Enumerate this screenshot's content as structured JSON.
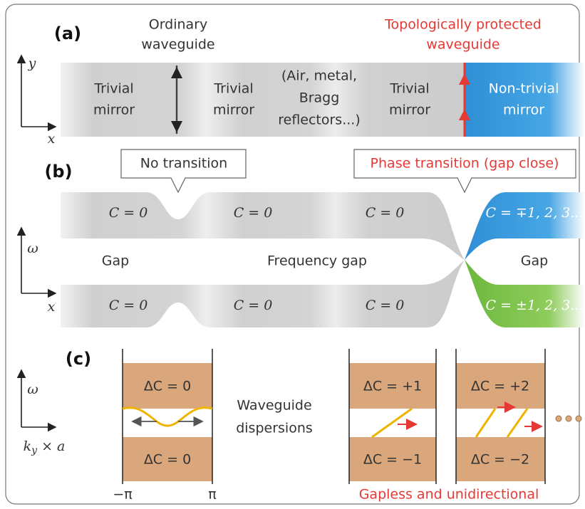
{
  "panel_a": {
    "label": "(a)",
    "ordinary": [
      "Ordinary",
      "waveguide"
    ],
    "protected": [
      "Topologically protected",
      "waveguide"
    ],
    "regions": [
      [
        "Trivial",
        "mirror"
      ],
      [
        "Trivial",
        "mirror"
      ],
      [
        "(Air, metal,",
        "Bragg",
        "reflectors...)"
      ],
      [
        "Trivial",
        "mirror"
      ],
      [
        "Non-trivial",
        "mirror"
      ]
    ],
    "axis_y": "y",
    "axis_x": "x"
  },
  "callouts": [
    "No transition",
    "Phase transition (gap close)"
  ],
  "panel_b": {
    "label": "(b)",
    "top_bands": [
      "C = 0",
      "C = 0",
      "C = 0",
      "C = ∓1, 2, 3..."
    ],
    "bottom_bands": [
      "C = 0",
      "C = 0",
      "C = 0",
      "C = ±1, 2, 3..."
    ],
    "gaps": [
      "Gap",
      "Frequency gap",
      "Gap"
    ],
    "axis_y": "ω",
    "axis_x": "x"
  },
  "panel_c": {
    "label": "(c)",
    "boxes": [
      [
        "ΔC = 0",
        "ΔC = 0"
      ],
      [
        "ΔC = +1",
        "ΔC = −1"
      ],
      [
        "ΔC = +2",
        "ΔC = −2"
      ]
    ],
    "middle": [
      "Waveguide",
      "dispersions"
    ],
    "x_min": "−π",
    "x_max": "π",
    "caption": "Gapless and unidirectional",
    "axis_y": "ω",
    "axis_x": {
      "base": "k",
      "sub": "y",
      "rest": " × a"
    }
  }
}
